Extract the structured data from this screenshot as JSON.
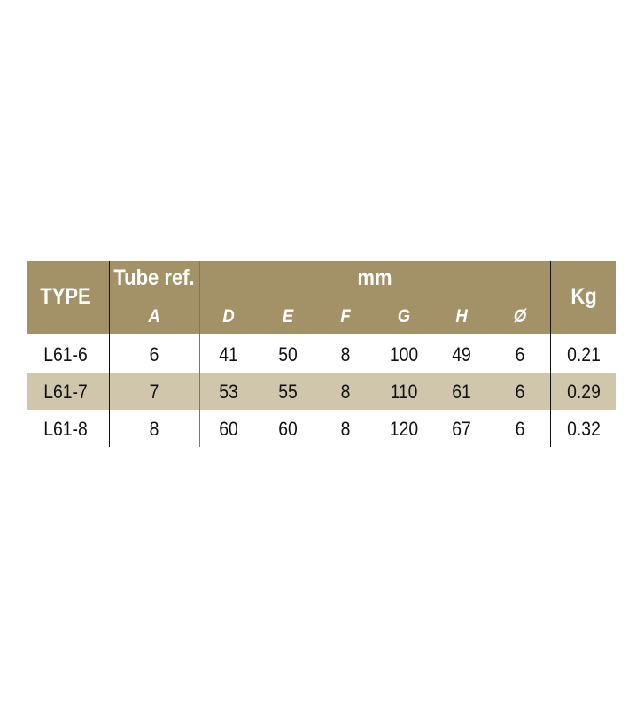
{
  "colors": {
    "header": "#a39268",
    "band": "#d0c6ab"
  },
  "header": {
    "type": "TYPE",
    "tube_ref": "Tube ref.",
    "mm": "mm",
    "kg": "Kg",
    "sub": [
      "A",
      "D",
      "E",
      "F",
      "G",
      "H",
      "Ø"
    ]
  },
  "rows": [
    [
      "L61-6",
      "6",
      "41",
      "50",
      "8",
      "100",
      "49",
      "6",
      "0.21"
    ],
    [
      "L61-7",
      "7",
      "53",
      "55",
      "8",
      "110",
      "61",
      "6",
      "0.29"
    ],
    [
      "L61-8",
      "8",
      "60",
      "60",
      "8",
      "120",
      "67",
      "6",
      "0.32"
    ]
  ]
}
